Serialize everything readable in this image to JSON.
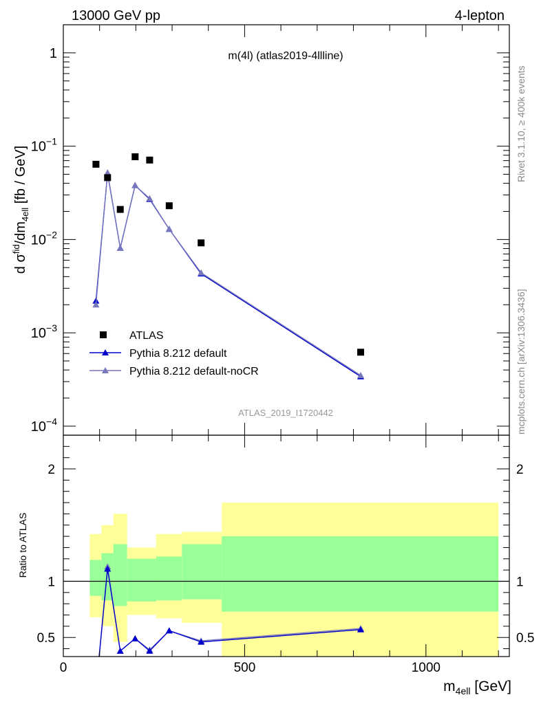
{
  "header": {
    "left": "13000 GeV pp",
    "right": "4-lepton"
  },
  "side_labels": {
    "rivet": "Rivet 3.1.10, ≥ 400k events",
    "mcplots": "mcplots.cern.ch [arXiv:1306.3436]"
  },
  "colors": {
    "data": "#000000",
    "pythia_default": "#0000cc",
    "pythia_nocr": "#7777bb",
    "band_inner": "#99ff99",
    "band_outer": "#ffff99",
    "ratio_line": "#000000"
  },
  "chart_data": [
    {
      "type": "scatter",
      "title": "m(4l) (atlas2019-4llline)",
      "analysis_id": "ATLAS_2019_I1720442",
      "ylabel_parts": {
        "a": "d σ",
        "a_sup": "fid",
        "b": "/dm",
        "b_sub": "4ell",
        "c": " [fb / GeV]"
      },
      "yscale": "log",
      "ylim": [
        8e-05,
        2
      ],
      "xlim": [
        0,
        1230
      ],
      "yticks": [
        {
          "v": 1,
          "base": "1",
          "exp": ""
        },
        {
          "v": 0.1,
          "base": "10",
          "exp": "−1"
        },
        {
          "v": 0.01,
          "base": "10",
          "exp": "−2"
        },
        {
          "v": 0.001,
          "base": "10",
          "exp": "−3"
        },
        {
          "v": 0.0001,
          "base": "10",
          "exp": "−4"
        }
      ],
      "legend_position": "bottom-left",
      "series": [
        {
          "name": "ATLAS",
          "kind": "data",
          "x": [
            90,
            122,
            157,
            198,
            238,
            292,
            380,
            820
          ],
          "y": [
            0.064,
            0.046,
            0.021,
            0.077,
            0.071,
            0.023,
            0.0092,
            0.00062
          ]
        },
        {
          "name": "Pythia 8.212 default",
          "kind": "line",
          "x": [
            90,
            122,
            157,
            198,
            238,
            292,
            380,
            820
          ],
          "y": [
            0.0022,
            0.051,
            0.0081,
            0.038,
            0.027,
            0.0129,
            0.0043,
            0.00034
          ]
        },
        {
          "name": "Pythia 8.212 default-noCR",
          "kind": "line",
          "x": [
            90,
            122,
            157,
            198,
            238,
            292,
            380,
            820
          ],
          "y": [
            0.002,
            0.052,
            0.0081,
            0.038,
            0.0275,
            0.0129,
            0.0044,
            0.00035
          ]
        }
      ]
    },
    {
      "type": "line",
      "ylabel": "Ratio to ATLAS",
      "xlabel_parts": {
        "a": "m",
        "a_sub": "4ell",
        "b": " [GeV]"
      },
      "xlim": [
        0,
        1230
      ],
      "ylim": [
        0.33,
        2.3
      ],
      "xticks": [
        0,
        500,
        1000
      ],
      "yticks": [
        0.5,
        1,
        2
      ],
      "bins": [
        {
          "lo": 73,
          "hi": 105,
          "inner": [
            0.87,
            1.19
          ],
          "outer": [
            0.68,
            1.42
          ]
        },
        {
          "lo": 105,
          "hi": 138,
          "inner": [
            0.83,
            1.25
          ],
          "outer": [
            0.6,
            1.5
          ]
        },
        {
          "lo": 138,
          "hi": 176,
          "inner": [
            0.78,
            1.33
          ],
          "outer": [
            0.46,
            1.6
          ]
        },
        {
          "lo": 176,
          "hi": 256,
          "inner": [
            0.82,
            1.2
          ],
          "outer": [
            0.7,
            1.3
          ]
        },
        {
          "lo": 256,
          "hi": 327,
          "inner": [
            0.83,
            1.22
          ],
          "outer": [
            0.67,
            1.42
          ]
        },
        {
          "lo": 327,
          "hi": 437,
          "inner": [
            0.84,
            1.33
          ],
          "outer": [
            0.63,
            1.44
          ]
        },
        {
          "lo": 437,
          "hi": 1200,
          "inner": [
            0.73,
            1.4
          ],
          "outer": [
            0.05,
            1.7
          ]
        }
      ],
      "series": [
        {
          "name": "Pythia 8.212 default",
          "x": [
            90,
            122,
            157,
            198,
            238,
            292,
            380,
            820
          ],
          "y": [
            0.034,
            1.11,
            0.38,
            0.49,
            0.38,
            0.56,
            0.46,
            0.57
          ]
        },
        {
          "name": "Pythia 8.212 default-noCR",
          "x": [
            90,
            122,
            157,
            198,
            238,
            292,
            380,
            820
          ],
          "y": [
            0.031,
            1.13,
            0.38,
            0.49,
            0.39,
            0.56,
            0.47,
            0.58
          ]
        }
      ]
    }
  ]
}
